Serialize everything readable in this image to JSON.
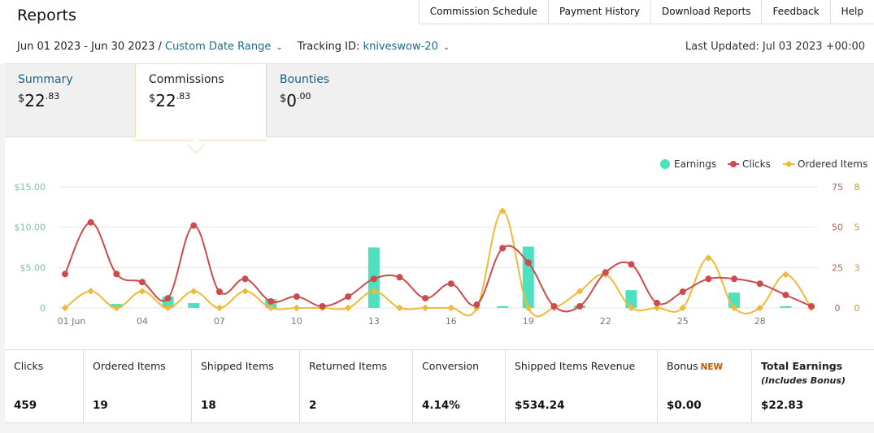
{
  "header": {
    "title": "Reports",
    "links": [
      "Commission Schedule",
      "Payment History",
      "Download Reports",
      "Feedback",
      "Help"
    ]
  },
  "filters": {
    "date_range": "Jun 01 2023 - Jun 30 2023",
    "separator": "/",
    "custom_range_label": "Custom Date Range",
    "tracking_label": "Tracking ID:",
    "tracking_id": "kniveswow-20",
    "last_updated": "Last Updated: Jul 03 2023 +00:00"
  },
  "tabs": [
    {
      "name": "Summary",
      "currency": "$",
      "whole": "22",
      "cents": ".83"
    },
    {
      "name": "Commissions",
      "currency": "$",
      "whole": "22",
      "cents": ".83"
    },
    {
      "name": "Bounties",
      "currency": "$",
      "whole": "0",
      "cents": ".00"
    }
  ],
  "colors": {
    "earnings": "#4fe0c0",
    "clicks": "#cc4b4b",
    "ordered": "#f0b93a",
    "link": "#1a6b8a"
  },
  "chart_data": {
    "type": "bar+line",
    "legend": [
      "Earnings",
      "Clicks",
      "Ordered Items"
    ],
    "legend_position": "top-right",
    "x_tick_labels": [
      "01 Jun",
      "04",
      "07",
      "10",
      "13",
      "16",
      "19",
      "22",
      "25",
      "28"
    ],
    "x_tick_days": [
      1,
      4,
      7,
      10,
      13,
      16,
      19,
      22,
      25,
      28
    ],
    "days": [
      1,
      2,
      3,
      4,
      5,
      6,
      7,
      8,
      9,
      10,
      11,
      12,
      13,
      14,
      15,
      16,
      17,
      18,
      19,
      20,
      21,
      22,
      23,
      24,
      25,
      26,
      27,
      28,
      29,
      30
    ],
    "earnings_axis": {
      "ticks": [
        "$15.00",
        "$10.00",
        "$5.00",
        "0"
      ],
      "max": 15
    },
    "clicks_axis": {
      "ticks": [
        "75",
        "50",
        "25",
        "0"
      ],
      "max": 75
    },
    "ordered_axis": {
      "ticks": [
        "8",
        "5",
        "3",
        "0"
      ],
      "max": 8
    },
    "series": [
      {
        "name": "Earnings",
        "axis": "earnings",
        "kind": "bar",
        "values": [
          0,
          0,
          0.5,
          0,
          1.4,
          0.6,
          0,
          0,
          1.1,
          0,
          0,
          0,
          7.5,
          0,
          0,
          0,
          0,
          0.2,
          7.6,
          0,
          0.3,
          0,
          2.2,
          0,
          0,
          0,
          1.9,
          0,
          0.2,
          0
        ]
      },
      {
        "name": "Clicks",
        "axis": "clicks",
        "kind": "line",
        "values": [
          21,
          53,
          21,
          16,
          6,
          51,
          10,
          18,
          4,
          7,
          1,
          7,
          18,
          19,
          6,
          15,
          2,
          37,
          28,
          1,
          1,
          22,
          27,
          3,
          10,
          18,
          18,
          15,
          8,
          1
        ]
      },
      {
        "name": "Ordered Items",
        "axis": "ordered",
        "kind": "line",
        "values": [
          0,
          1.1,
          0,
          1.1,
          0,
          1.1,
          0,
          1.1,
          0,
          0,
          0,
          0,
          1.1,
          0,
          0,
          0,
          0,
          6.4,
          0,
          0,
          1.1,
          2.2,
          0,
          0,
          0,
          3.3,
          0,
          0,
          2.2,
          0
        ]
      }
    ]
  },
  "stats": [
    {
      "label": "Clicks",
      "value": "459"
    },
    {
      "label": "Ordered Items",
      "value": "19"
    },
    {
      "label": "Shipped Items",
      "value": "18"
    },
    {
      "label": "Returned Items",
      "value": "2"
    },
    {
      "label": "Conversion",
      "value": "4.14%"
    },
    {
      "label": "Shipped Items Revenue",
      "value": "$534.24"
    },
    {
      "label": "Bonus",
      "badge": "NEW",
      "value": "$0.00"
    },
    {
      "label": "Total Earnings",
      "sublabel": "(Includes Bonus)",
      "value": "$22.83"
    }
  ]
}
